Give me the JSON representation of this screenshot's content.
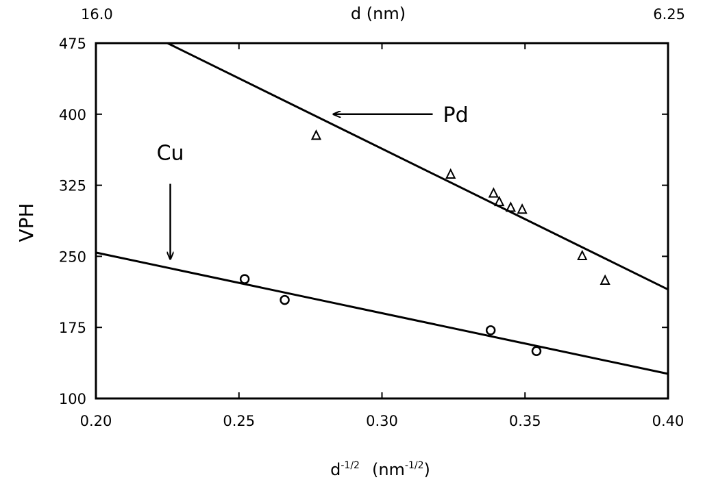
{
  "chart_data": {
    "type": "scatter",
    "xlabel": {
      "base": "d",
      "sup": "-1/2",
      "unit_base": "(nm",
      "unit_sup": "-1/2",
      "unit_close": ")"
    },
    "ylabel": "VPH",
    "top_axis": {
      "label": "d (nm)",
      "left_value": "16.0",
      "right_value": "6.25"
    },
    "xlim": [
      0.2,
      0.4
    ],
    "ylim": [
      100,
      475
    ],
    "x_ticks": [
      "0.20",
      "0.25",
      "0.30",
      "0.35",
      "0.40"
    ],
    "y_ticks": [
      "100",
      "175",
      "250",
      "325",
      "400",
      "475"
    ],
    "grid": false,
    "series": [
      {
        "name": "Pd",
        "marker": "triangle",
        "points": [
          {
            "x": 0.277,
            "y": 378
          },
          {
            "x": 0.324,
            "y": 337
          },
          {
            "x": 0.339,
            "y": 317
          },
          {
            "x": 0.341,
            "y": 308
          },
          {
            "x": 0.345,
            "y": 302
          },
          {
            "x": 0.349,
            "y": 300
          },
          {
            "x": 0.37,
            "y": 251
          },
          {
            "x": 0.378,
            "y": 225
          }
        ],
        "fit_line": [
          [
            0.225,
            475
          ],
          [
            0.4,
            215
          ]
        ]
      },
      {
        "name": "Cu",
        "marker": "circle",
        "points": [
          {
            "x": 0.252,
            "y": 226
          },
          {
            "x": 0.266,
            "y": 204
          },
          {
            "x": 0.338,
            "y": 172
          },
          {
            "x": 0.354,
            "y": 150
          }
        ],
        "fit_line": [
          [
            0.2,
            254
          ],
          [
            0.4,
            126
          ]
        ]
      }
    ],
    "annotations": [
      {
        "text": "Pd",
        "arrow": "left",
        "x": 0.283,
        "y": 400
      },
      {
        "text": "Cu",
        "arrow": "down",
        "x": 0.226,
        "y": 247
      }
    ]
  }
}
